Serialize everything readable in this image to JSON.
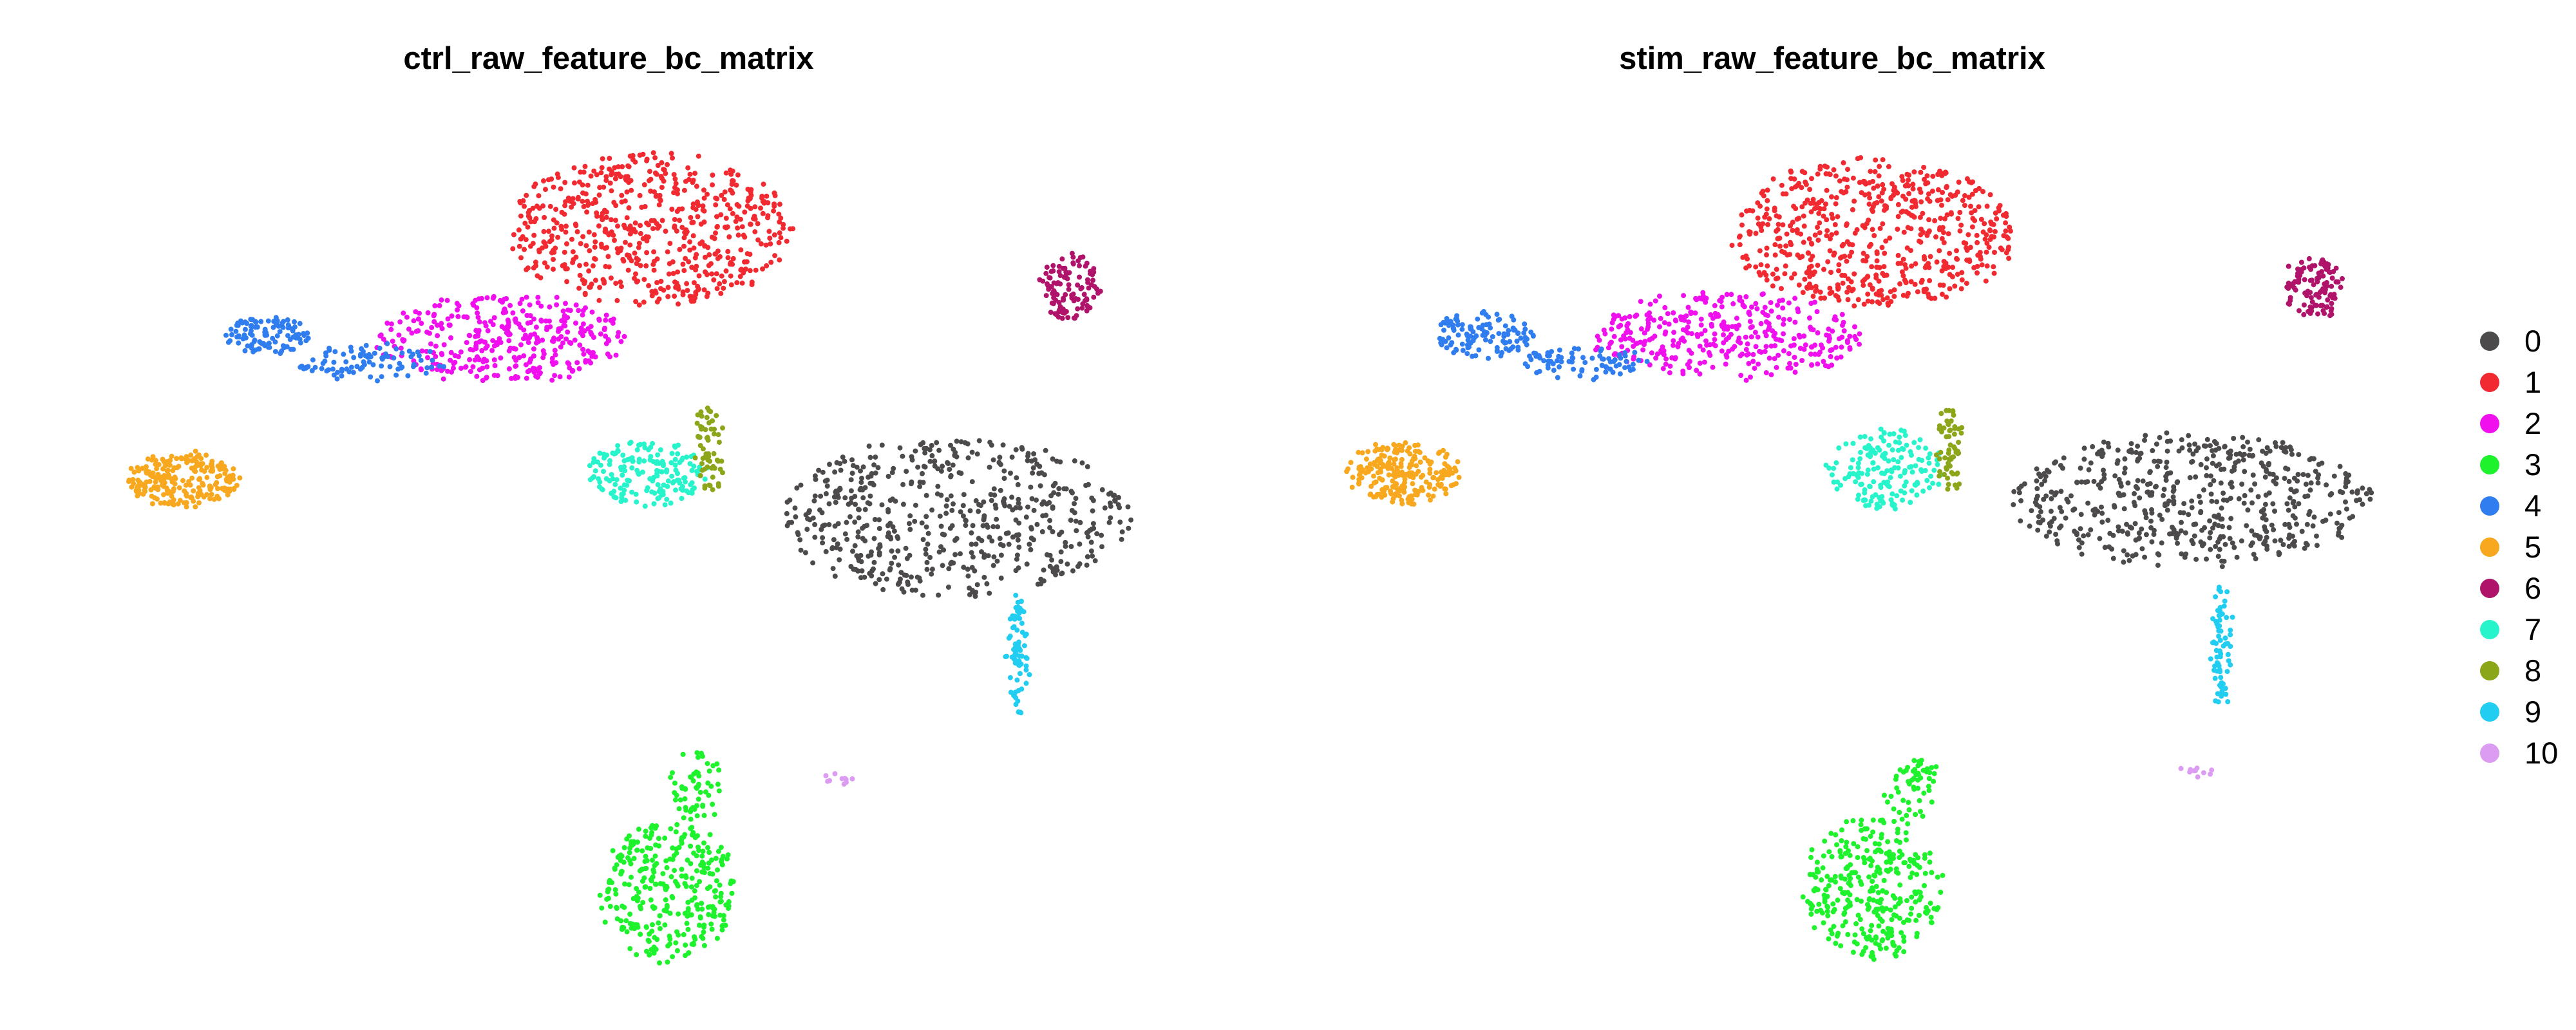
{
  "chart_data": {
    "type": "scatter",
    "title": "",
    "xlabel": "",
    "ylabel": "",
    "axes": "none",
    "grid": false,
    "legend_position": "right",
    "legend": [
      {
        "label": "0",
        "color": "#4D4A4B"
      },
      {
        "label": "1",
        "color": "#F12A31"
      },
      {
        "label": "2",
        "color": "#F010EE"
      },
      {
        "label": "3",
        "color": "#1EF22C"
      },
      {
        "label": "4",
        "color": "#2F7DEE"
      },
      {
        "label": "5",
        "color": "#F7A81E"
      },
      {
        "label": "6",
        "color": "#B0136A"
      },
      {
        "label": "7",
        "color": "#27F4CB"
      },
      {
        "label": "8",
        "color": "#8CA61A"
      },
      {
        "label": "9",
        "color": "#21CDF1"
      },
      {
        "label": "10",
        "color": "#DB9CF2"
      }
    ],
    "panels": [
      {
        "title": "ctrl_raw_feature_bc_matrix",
        "clusters": [
          {
            "cluster": "0",
            "n": 560,
            "blobs": [
              {
                "cx": 0.36,
                "cy": -0.12,
                "rx": 1.28,
                "ry": 1.0,
                "w": 1
              }
            ]
          },
          {
            "cluster": "1",
            "n": 600,
            "blobs": [
              {
                "cx": -1.88,
                "cy": 3.55,
                "rx": 1.05,
                "ry": 0.95,
                "w": 1
              }
            ]
          },
          {
            "cluster": "2",
            "n": 360,
            "blobs": [
              {
                "cx": -2.95,
                "cy": 2.15,
                "rx": 0.95,
                "ry": 0.55,
                "w": 1
              }
            ]
          },
          {
            "cluster": "3",
            "n": 380,
            "blobs": [
              {
                "cx": -1.75,
                "cy": -4.9,
                "rx": 0.5,
                "ry": 0.9,
                "w": 0.85
              },
              {
                "cx": -1.55,
                "cy": -3.55,
                "rx": 0.18,
                "ry": 0.45,
                "w": 0.15
              }
            ]
          },
          {
            "cluster": "4",
            "n": 200,
            "blobs": [
              {
                "cx": -4.72,
                "cy": 2.2,
                "rx": 0.32,
                "ry": 0.22,
                "w": 0.55
              },
              {
                "cx": -3.95,
                "cy": 1.85,
                "rx": 0.55,
                "ry": 0.22,
                "w": 0.45
              }
            ]
          },
          {
            "cluster": "5",
            "n": 230,
            "blobs": [
              {
                "cx": -5.32,
                "cy": 0.35,
                "rx": 0.4,
                "ry": 0.34,
                "w": 1
              }
            ]
          },
          {
            "cluster": "6",
            "n": 110,
            "blobs": [
              {
                "cx": 1.2,
                "cy": 2.8,
                "rx": 0.22,
                "ry": 0.42,
                "w": 1
              }
            ]
          },
          {
            "cluster": "7",
            "n": 170,
            "blobs": [
              {
                "cx": -1.9,
                "cy": 0.45,
                "rx": 0.42,
                "ry": 0.42,
                "w": 1
              }
            ]
          },
          {
            "cluster": "8",
            "n": 60,
            "blobs": [
              {
                "cx": -1.45,
                "cy": 0.75,
                "rx": 0.08,
                "ry": 0.55,
                "w": 1
              }
            ]
          },
          {
            "cluster": "9",
            "n": 70,
            "blobs": [
              {
                "cx": 0.82,
                "cy": -1.9,
                "rx": 0.06,
                "ry": 0.8,
                "w": 1
              }
            ]
          },
          {
            "cluster": "10",
            "n": 10,
            "blobs": [
              {
                "cx": -0.5,
                "cy": -3.45,
                "rx": 0.09,
                "ry": 0.06,
                "w": 1
              }
            ]
          }
        ]
      },
      {
        "title": "stim_raw_feature_bc_matrix",
        "clusters": [
          {
            "cluster": "0",
            "n": 560,
            "blobs": [
              {
                "cx": 0.5,
                "cy": 0.1,
                "rx": 1.3,
                "ry": 0.85,
                "w": 1
              }
            ]
          },
          {
            "cluster": "1",
            "n": 600,
            "blobs": [
              {
                "cx": -1.85,
                "cy": 3.5,
                "rx": 1.05,
                "ry": 0.95,
                "w": 1
              }
            ]
          },
          {
            "cluster": "2",
            "n": 360,
            "blobs": [
              {
                "cx": -2.9,
                "cy": 2.2,
                "rx": 1.0,
                "ry": 0.55,
                "w": 1
              }
            ]
          },
          {
            "cluster": "3",
            "n": 380,
            "blobs": [
              {
                "cx": -1.85,
                "cy": -4.85,
                "rx": 0.5,
                "ry": 0.9,
                "w": 0.85
              },
              {
                "cx": -1.55,
                "cy": -3.6,
                "rx": 0.18,
                "ry": 0.45,
                "w": 0.15
              }
            ]
          },
          {
            "cluster": "4",
            "n": 200,
            "blobs": [
              {
                "cx": -4.7,
                "cy": 2.2,
                "rx": 0.35,
                "ry": 0.28,
                "w": 0.6
              },
              {
                "cx": -3.95,
                "cy": 1.85,
                "rx": 0.45,
                "ry": 0.2,
                "w": 0.4
              }
            ]
          },
          {
            "cluster": "5",
            "n": 230,
            "blobs": [
              {
                "cx": -5.28,
                "cy": 0.45,
                "rx": 0.4,
                "ry": 0.38,
                "w": 1
              }
            ]
          },
          {
            "cluster": "6",
            "n": 110,
            "blobs": [
              {
                "cx": 1.4,
                "cy": 2.8,
                "rx": 0.22,
                "ry": 0.38,
                "w": 1
              }
            ]
          },
          {
            "cluster": "7",
            "n": 170,
            "blobs": [
              {
                "cx": -1.75,
                "cy": 0.5,
                "rx": 0.42,
                "ry": 0.5,
                "w": 1
              }
            ]
          },
          {
            "cluster": "8",
            "n": 60,
            "blobs": [
              {
                "cx": -1.28,
                "cy": 0.75,
                "rx": 0.08,
                "ry": 0.55,
                "w": 1
              }
            ]
          },
          {
            "cluster": "9",
            "n": 70,
            "blobs": [
              {
                "cx": 0.72,
                "cy": -1.75,
                "rx": 0.06,
                "ry": 0.75,
                "w": 1
              }
            ]
          },
          {
            "cluster": "10",
            "n": 10,
            "blobs": [
              {
                "cx": 0.55,
                "cy": -3.35,
                "rx": 0.12,
                "ry": 0.08,
                "w": 1
              }
            ]
          }
        ]
      }
    ]
  }
}
